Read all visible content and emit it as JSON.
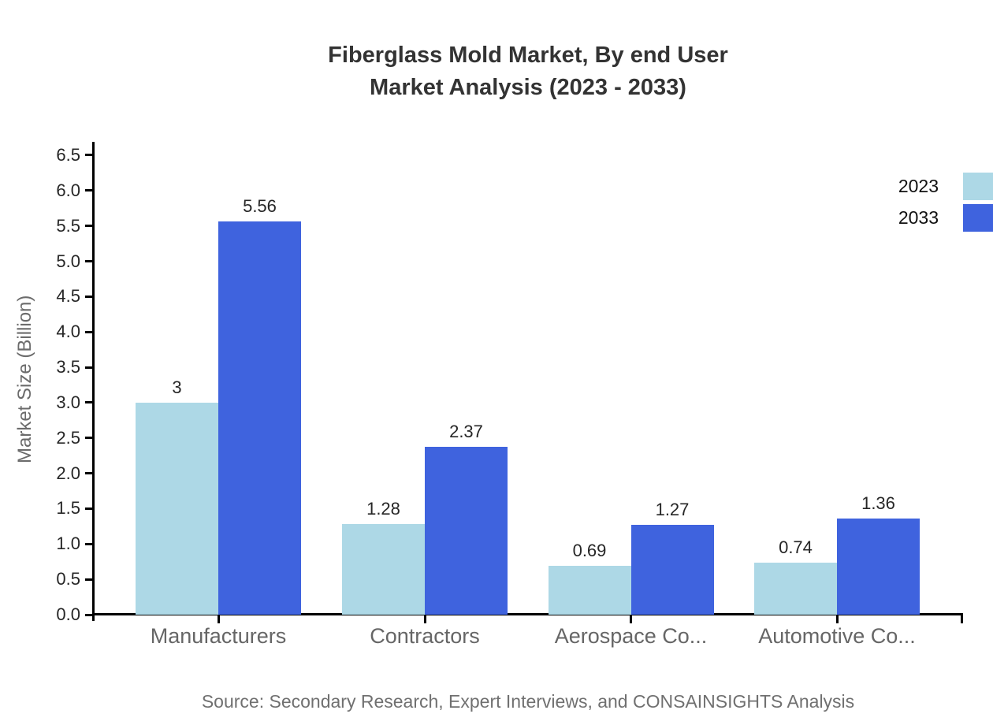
{
  "title": {
    "line1": "Fiberglass Mold Market, By end User",
    "line2": "Market Analysis (2023 - 2033)"
  },
  "source": "Source: Secondary Research, Expert Interviews, and CONSAINSIGHTS Analysis",
  "chart_data": {
    "type": "bar",
    "title": "Fiberglass Mold Market, By end User Market Analysis (2023 - 2033)",
    "categories": [
      "Manufacturers",
      "Contractors",
      "Aerospace Co...",
      "Automotive Co..."
    ],
    "series": [
      {
        "name": "2023",
        "color": "#ADD8E6",
        "values": [
          3,
          1.28,
          0.69,
          0.74
        ]
      },
      {
        "name": "2033",
        "color": "#3F63DE",
        "values": [
          5.56,
          2.37,
          1.27,
          1.36
        ]
      }
    ],
    "xlabel": "",
    "ylabel": "Market Size (Billion)",
    "ylim": [
      0,
      6.5
    ],
    "ytick_step": 0.5,
    "grid": false,
    "legend_position": "top-right",
    "value_labels_shown": true
  }
}
